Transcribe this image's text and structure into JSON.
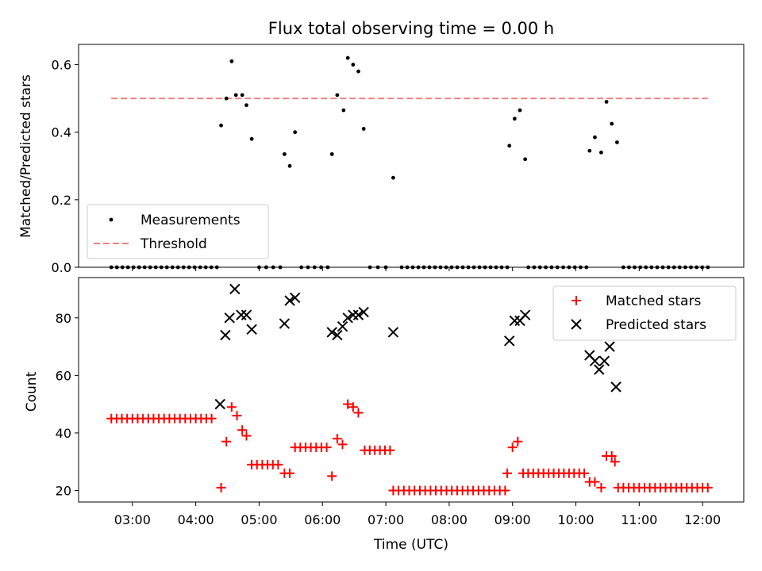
{
  "chart_data": [
    {
      "type": "scatter",
      "title": "Flux total observing time = 0.00 h",
      "xlabel": "",
      "ylabel": "Matched/Predicted stars",
      "x_range_hours": [
        2.15,
        12.65
      ],
      "ylim": [
        0,
        0.66
      ],
      "yticks": [
        0.0,
        0.2,
        0.4,
        0.6
      ],
      "ytick_labels": [
        "0.0",
        "0.2",
        "0.4",
        "0.6"
      ],
      "legend": {
        "placement": "lower-left",
        "entries": [
          "Measurements",
          "Threshold"
        ]
      },
      "threshold": {
        "name": "Threshold",
        "value": 0.5,
        "x_start": "02:40",
        "x_end": "12:05",
        "color": "#f08080"
      },
      "series": [
        {
          "name": "Measurements",
          "color": "#000000",
          "points": [
            [
              "04:24",
              0.42
            ],
            [
              "04:29",
              0.5
            ],
            [
              "04:34",
              0.61
            ],
            [
              "04:38",
              0.51
            ],
            [
              "04:44",
              0.51
            ],
            [
              "04:48",
              0.48
            ],
            [
              "04:53",
              0.38
            ],
            [
              "05:24",
              0.335
            ],
            [
              "05:29",
              0.3
            ],
            [
              "05:34",
              0.4
            ],
            [
              "06:09",
              0.335
            ],
            [
              "06:14",
              0.51
            ],
            [
              "06:20",
              0.465
            ],
            [
              "06:24",
              0.62
            ],
            [
              "06:29",
              0.6
            ],
            [
              "06:34",
              0.58
            ],
            [
              "06:39",
              0.41
            ],
            [
              "07:07",
              0.265
            ],
            [
              "08:57",
              0.36
            ],
            [
              "09:02",
              0.44
            ],
            [
              "09:07",
              0.465
            ],
            [
              "09:12",
              0.32
            ],
            [
              "10:13",
              0.345
            ],
            [
              "10:18",
              0.385
            ],
            [
              "10:24",
              0.34
            ],
            [
              "10:29",
              0.49
            ],
            [
              "10:34",
              0.425
            ],
            [
              "10:39",
              0.37
            ]
          ],
          "zero_runs": [
            [
              "02:40",
              "04:20",
              20
            ],
            [
              "05:00",
              "05:20",
              4
            ],
            [
              "05:40",
              "06:05",
              5
            ],
            [
              "06:45",
              "07:00",
              3
            ],
            [
              "07:15",
              "08:55",
              20
            ],
            [
              "09:15",
              "10:10",
              11
            ],
            [
              "10:45",
              "12:05",
              16
            ]
          ]
        }
      ]
    },
    {
      "type": "scatter",
      "title": "",
      "xlabel": "Time (UTC)",
      "ylabel": "Count",
      "x_range_hours": [
        2.15,
        12.65
      ],
      "ylim": [
        16,
        94
      ],
      "yticks": [
        20,
        40,
        60,
        80
      ],
      "ytick_labels": [
        "20",
        "40",
        "60",
        "80"
      ],
      "xticks": [
        "03:00",
        "04:00",
        "05:00",
        "06:00",
        "07:00",
        "08:00",
        "09:00",
        "10:00",
        "11:00",
        "12:00"
      ],
      "legend": {
        "placement": "top-right",
        "entries": [
          "Matched stars",
          "Predicted stars"
        ]
      },
      "series": [
        {
          "name": "Matched stars",
          "marker": "plus",
          "color": "#ff0000",
          "points": [
            [
              "04:24",
              21
            ],
            [
              "04:29",
              37
            ],
            [
              "04:34",
              49
            ],
            [
              "04:39",
              46
            ],
            [
              "04:44",
              41
            ],
            [
              "04:48",
              39
            ],
            [
              "05:24",
              26
            ],
            [
              "05:29",
              26
            ],
            [
              "06:09",
              25
            ],
            [
              "06:14",
              38
            ],
            [
              "06:19",
              36
            ],
            [
              "06:24",
              50
            ],
            [
              "06:29",
              49
            ],
            [
              "06:34",
              47
            ],
            [
              "08:55",
              26
            ],
            [
              "09:00",
              35
            ],
            [
              "09:05",
              37
            ]
          ],
          "runs": [
            [
              "02:40",
              "04:15",
              45,
              20
            ],
            [
              "04:53",
              "05:18",
              29,
              6
            ],
            [
              "05:34",
              "06:04",
              35,
              7
            ],
            [
              "06:40",
              "07:04",
              34,
              6
            ],
            [
              "07:07",
              "08:53",
              20,
              22
            ],
            [
              "09:10",
              "10:08",
              26,
              13
            ],
            [
              "10:13",
              "10:18",
              23,
              2
            ],
            [
              "10:24",
              "10:24",
              21,
              1
            ],
            [
              "10:29",
              "10:34",
              32,
              2
            ],
            [
              "10:37",
              "10:37",
              30,
              1
            ],
            [
              "10:40",
              "12:05",
              21,
              18
            ]
          ]
        },
        {
          "name": "Predicted stars",
          "marker": "x",
          "color": "#000000",
          "points": [
            [
              "04:23",
              50
            ],
            [
              "04:28",
              74
            ],
            [
              "04:32",
              80
            ],
            [
              "04:37",
              90
            ],
            [
              "04:43",
              81
            ],
            [
              "04:48",
              81
            ],
            [
              "04:53",
              76
            ],
            [
              "05:24",
              78
            ],
            [
              "05:29",
              86
            ],
            [
              "05:34",
              87
            ],
            [
              "06:09",
              75
            ],
            [
              "06:14",
              74
            ],
            [
              "06:19",
              77
            ],
            [
              "06:24",
              80
            ],
            [
              "06:29",
              81
            ],
            [
              "06:34",
              81
            ],
            [
              "06:39",
              82
            ],
            [
              "07:07",
              75
            ],
            [
              "08:57",
              72
            ],
            [
              "09:02",
              79
            ],
            [
              "09:07",
              79
            ],
            [
              "09:12",
              81
            ],
            [
              "10:13",
              67
            ],
            [
              "10:18",
              65
            ],
            [
              "10:22",
              62
            ],
            [
              "10:27",
              65
            ],
            [
              "10:32",
              70
            ],
            [
              "10:38",
              56
            ]
          ]
        }
      ]
    }
  ]
}
